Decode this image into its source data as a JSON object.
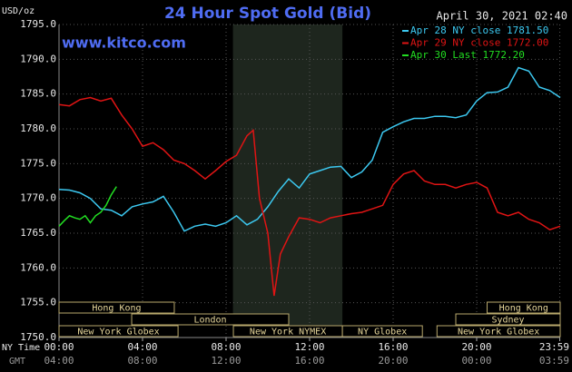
{
  "chart_data": {
    "type": "line",
    "title": "24 Hour Spot Gold (Bid)",
    "timestamp": "April 30, 2021 02:40",
    "website": "www.kitco.com",
    "y_axis_label": "USD/oz",
    "x_axis_label": "NY Time",
    "x2_axis_label": "GMT",
    "xlim": [
      0,
      24
    ],
    "xticks": [
      {
        "value": 0,
        "label": "00:00"
      },
      {
        "value": 4,
        "label": "04:00"
      },
      {
        "value": 8,
        "label": "08:00"
      },
      {
        "value": 12,
        "label": "12:00"
      },
      {
        "value": 16,
        "label": "16:00"
      },
      {
        "value": 20,
        "label": "20:00"
      },
      {
        "value": 23.98,
        "label": "23:59"
      }
    ],
    "x2tick_labels": [
      "04:00",
      "08:00",
      "12:00",
      "16:00",
      "20:00",
      "00:00",
      "03:59"
    ],
    "ylim": [
      1750,
      1795
    ],
    "yticks": [
      {
        "value": 1750,
        "label": "1750.0"
      },
      {
        "value": 1755,
        "label": "1755.0"
      },
      {
        "value": 1760,
        "label": "1760.0"
      },
      {
        "value": 1765,
        "label": "1765.0"
      },
      {
        "value": 1770,
        "label": "1770.0"
      },
      {
        "value": 1775,
        "label": "1775.0"
      },
      {
        "value": 1780,
        "label": "1780.0"
      },
      {
        "value": 1785,
        "label": "1785.0"
      },
      {
        "value": 1790,
        "label": "1790.0"
      },
      {
        "value": 1795,
        "label": "1795.0"
      }
    ],
    "grid": true,
    "legend": "top-right",
    "shaded_range": [
      8.33,
      13.57
    ],
    "sessions": [
      {
        "label": "Hong Kong",
        "start": 0,
        "end": 5.52,
        "row": 0
      },
      {
        "label": "London",
        "start": 3.48,
        "end": 11.0,
        "row": 1
      },
      {
        "label": "New York Globex",
        "start": 0,
        "end": 5.7,
        "row": 2
      },
      {
        "label": "New York NYMEX",
        "start": 8.35,
        "end": 13.57,
        "row": 2
      },
      {
        "label": "NY Globex",
        "start": 13.57,
        "end": 17.4,
        "row": 2
      },
      {
        "label": "Hong Kong",
        "start": 20.5,
        "end": 24,
        "row": 0
      },
      {
        "label": "Sydney",
        "start": 19.0,
        "end": 24,
        "row": 1
      },
      {
        "label": "New York Globex",
        "start": 18.1,
        "end": 24,
        "row": 2
      }
    ],
    "series": [
      {
        "name": "Apr 28 NY close 1781.50",
        "color": "#3cc8f0",
        "x": [
          0,
          0.5,
          1,
          1.5,
          2,
          2.5,
          3,
          3.5,
          4,
          4.5,
          5,
          5.5,
          6,
          6.5,
          7,
          7.5,
          8,
          8.5,
          9,
          9.5,
          10,
          10.5,
          11,
          11.5,
          12,
          12.5,
          13,
          13.5,
          14,
          14.5,
          15,
          15.5,
          16,
          16.5,
          17,
          17.5,
          18,
          18.5,
          19,
          19.5,
          20,
          20.5,
          21,
          21.5,
          22,
          22.5,
          23,
          23.5,
          24
        ],
        "values": [
          1771.3,
          1771.2,
          1770.8,
          1770.0,
          1768.5,
          1768.3,
          1767.5,
          1768.8,
          1769.2,
          1769.5,
          1770.3,
          1768.0,
          1765.3,
          1766.0,
          1766.3,
          1766.0,
          1766.5,
          1767.5,
          1766.2,
          1767.0,
          1768.8,
          1771.0,
          1772.8,
          1771.5,
          1773.5,
          1774.0,
          1774.5,
          1774.6,
          1773.0,
          1773.8,
          1775.5,
          1779.5,
          1780.3,
          1781.0,
          1781.5,
          1781.5,
          1781.8,
          1781.8,
          1781.6,
          1782.0,
          1784.0,
          1785.2,
          1785.3,
          1786.0,
          1788.8,
          1788.3,
          1786.0,
          1785.5,
          1784.5
        ]
      },
      {
        "name": "Apr 29 NY close 1772.00",
        "color": "#e01414",
        "x": [
          0,
          0.5,
          1,
          1.5,
          2,
          2.5,
          3,
          3.5,
          4,
          4.5,
          5,
          5.5,
          6,
          6.5,
          7,
          7.5,
          8,
          8.5,
          9,
          9.3,
          9.6,
          10,
          10.3,
          10.6,
          11,
          11.5,
          12,
          12.5,
          13,
          13.5,
          14,
          14.5,
          15,
          15.5,
          16,
          16.5,
          17,
          17.5,
          18,
          18.5,
          19,
          19.5,
          20,
          20.5,
          21,
          21.5,
          22,
          22.5,
          23,
          23.5,
          24
        ],
        "values": [
          1783.5,
          1783.3,
          1784.2,
          1784.5,
          1784.0,
          1784.4,
          1782.0,
          1780.0,
          1777.5,
          1778.0,
          1777.0,
          1775.5,
          1775.0,
          1774.0,
          1772.8,
          1774.0,
          1775.3,
          1776.2,
          1779.0,
          1779.8,
          1770.0,
          1765.0,
          1756.0,
          1762.0,
          1764.5,
          1767.2,
          1767.0,
          1766.5,
          1767.2,
          1767.5,
          1767.8,
          1768.0,
          1768.5,
          1769.0,
          1772.0,
          1773.5,
          1774.0,
          1772.5,
          1772.0,
          1772.0,
          1771.5,
          1772.0,
          1772.3,
          1771.5,
          1768.0,
          1767.5,
          1768.0,
          1767.0,
          1766.5,
          1765.5,
          1766.0
        ]
      },
      {
        "name": "Apr 30 Last 1772.20",
        "color": "#22dd22",
        "x": [
          0,
          0.25,
          0.5,
          0.75,
          1,
          1.25,
          1.5,
          1.75,
          2,
          2.25,
          2.5,
          2.75
        ],
        "values": [
          1766.0,
          1766.8,
          1767.5,
          1767.2,
          1767.0,
          1767.5,
          1766.5,
          1767.5,
          1768.0,
          1769.0,
          1770.5,
          1771.7
        ]
      }
    ]
  }
}
